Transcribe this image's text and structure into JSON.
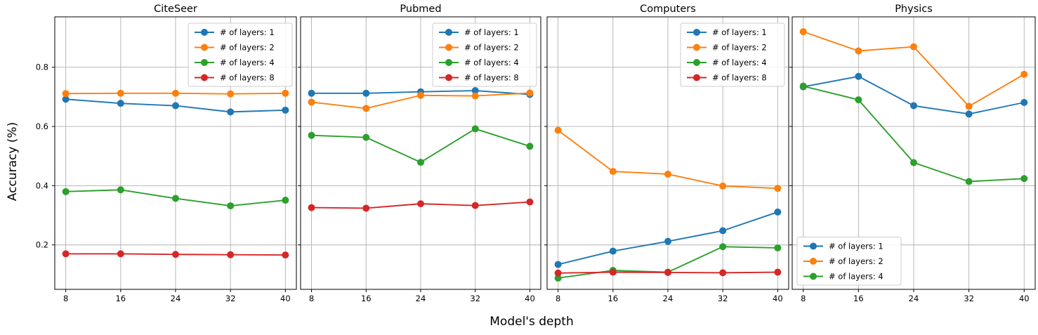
{
  "labels": {
    "xlabel": "Model's depth",
    "ylabel": "Accuracy (%)"
  },
  "chart_meta": {
    "grid": true,
    "xlim": [
      6.4,
      41.6
    ],
    "ylim": [
      0.05,
      0.97
    ],
    "xticks": [
      8,
      16,
      24,
      32,
      40
    ],
    "yticks": [
      0.2,
      0.4,
      0.6,
      0.8
    ],
    "grid_color": "#b0b0b0",
    "spine_color": "#000000",
    "legend_border_color": "#cccccc"
  },
  "chart_data": [
    {
      "type": "line",
      "title": "CiteSeer",
      "x": [
        8,
        16,
        24,
        32,
        40
      ],
      "legend_position": "upper-right",
      "series": [
        {
          "name": "# of layers: 1",
          "color": "#1f77b4",
          "values": [
            0.692,
            0.678,
            0.67,
            0.649,
            0.655
          ]
        },
        {
          "name": "# of layers: 2",
          "color": "#ff7f0e",
          "values": [
            0.711,
            0.712,
            0.712,
            0.71,
            0.712
          ]
        },
        {
          "name": "# of layers: 4",
          "color": "#2ca02c",
          "values": [
            0.38,
            0.386,
            0.357,
            0.332,
            0.351
          ]
        },
        {
          "name": "# of layers: 8",
          "color": "#d62728",
          "values": [
            0.17,
            0.17,
            0.168,
            0.167,
            0.166
          ]
        }
      ]
    },
    {
      "type": "line",
      "title": "Pubmed",
      "x": [
        8,
        16,
        24,
        32,
        40
      ],
      "legend_position": "upper-right",
      "series": [
        {
          "name": "# of layers: 1",
          "color": "#1f77b4",
          "values": [
            0.712,
            0.712,
            0.717,
            0.721,
            0.708
          ]
        },
        {
          "name": "# of layers: 2",
          "color": "#ff7f0e",
          "values": [
            0.682,
            0.661,
            0.705,
            0.703,
            0.713
          ]
        },
        {
          "name": "# of layers: 4",
          "color": "#2ca02c",
          "values": [
            0.57,
            0.563,
            0.479,
            0.592,
            0.533
          ]
        },
        {
          "name": "# of layers: 8",
          "color": "#d62728",
          "values": [
            0.326,
            0.324,
            0.339,
            0.333,
            0.345
          ]
        }
      ]
    },
    {
      "type": "line",
      "title": "Computers",
      "x": [
        8,
        16,
        24,
        32,
        40
      ],
      "legend_position": "upper-right",
      "series": [
        {
          "name": "# of layers: 1",
          "color": "#1f77b4",
          "values": [
            0.134,
            0.179,
            0.212,
            0.248,
            0.311
          ]
        },
        {
          "name": "# of layers: 2",
          "color": "#ff7f0e",
          "values": [
            0.587,
            0.448,
            0.439,
            0.399,
            0.391
          ]
        },
        {
          "name": "# of layers: 4",
          "color": "#2ca02c",
          "values": [
            0.088,
            0.114,
            0.108,
            0.194,
            0.19
          ]
        },
        {
          "name": "# of layers: 8",
          "color": "#d62728",
          "values": [
            0.105,
            0.108,
            0.107,
            0.106,
            0.108
          ]
        }
      ]
    },
    {
      "type": "line",
      "title": "Physics",
      "x": [
        8,
        16,
        24,
        32,
        40
      ],
      "legend_position": "lower-left",
      "series": [
        {
          "name": "# of layers: 1",
          "color": "#1f77b4",
          "values": [
            0.734,
            0.769,
            0.67,
            0.642,
            0.681
          ]
        },
        {
          "name": "# of layers: 2",
          "color": "#ff7f0e",
          "values": [
            0.92,
            0.855,
            0.869,
            0.668,
            0.776
          ]
        },
        {
          "name": "# of layers: 4",
          "color": "#2ca02c",
          "values": [
            0.736,
            0.69,
            0.478,
            0.414,
            0.424
          ]
        }
      ]
    }
  ]
}
